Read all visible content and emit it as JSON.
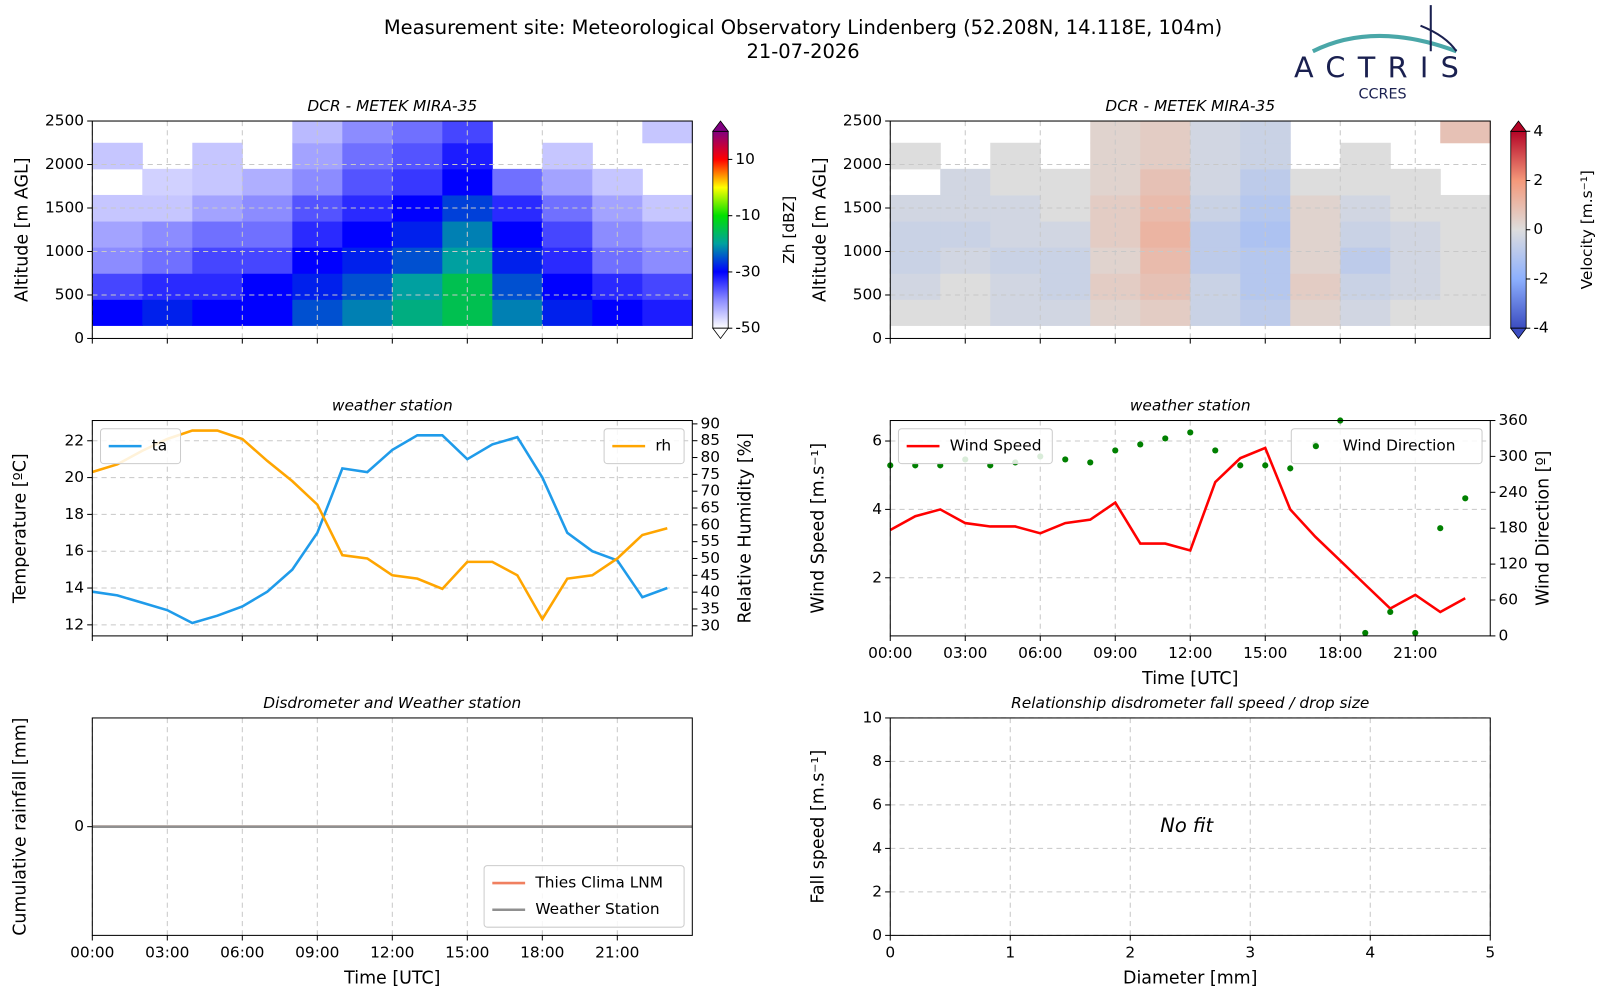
{
  "header": {
    "title": "Measurement site: Meteorological Observatory Lindenberg (52.208N, 14.118E, 104m)",
    "date": "21-07-2026",
    "logo": {
      "name": "ACTRIS",
      "sub": "CCRES"
    }
  },
  "chart_data": [
    {
      "type": "heatmap",
      "title": "DCR - METEK MIRA-35",
      "ylabel": "Altitude [m AGL]",
      "x_bins": [
        0,
        2,
        4,
        6,
        8,
        10,
        12,
        14,
        16,
        18,
        20,
        22,
        24
      ],
      "y_bins": [
        150,
        450,
        750,
        1050,
        1350,
        1650,
        1950,
        2250,
        2500
      ],
      "values": [
        [
          -30,
          -28,
          -30,
          -30,
          -25,
          -22,
          -18,
          -15,
          -22,
          -28,
          -30,
          -32
        ],
        [
          -35,
          -33,
          -33,
          -30,
          -28,
          -25,
          -20,
          -15,
          -25,
          -30,
          -33,
          -35
        ],
        [
          -40,
          -38,
          -35,
          -35,
          -30,
          -28,
          -25,
          -20,
          -28,
          -33,
          -38,
          -40
        ],
        [
          -42,
          -40,
          -38,
          -38,
          -33,
          -30,
          -28,
          -22,
          -30,
          -35,
          -40,
          -42
        ],
        [
          -45,
          -45,
          -42,
          -40,
          -36,
          -33,
          -30,
          -26,
          -33,
          -38,
          -42,
          -45
        ],
        [
          null,
          -46,
          -45,
          -43,
          -40,
          -36,
          -34,
          -30,
          -38,
          -42,
          -45,
          null
        ],
        [
          -45,
          null,
          -45,
          null,
          -42,
          -38,
          -36,
          -32,
          null,
          -45,
          null,
          null
        ],
        [
          null,
          null,
          null,
          null,
          -44,
          -40,
          -38,
          -35,
          null,
          null,
          null,
          -45
        ]
      ],
      "xlim": [
        0,
        24
      ],
      "xticks": [
        0,
        3,
        6,
        9,
        12,
        15,
        18,
        21
      ],
      "show_xtick_labels": false,
      "ylim": [
        0,
        2500
      ],
      "yticks": [
        0,
        500,
        1000,
        1500,
        2000,
        2500
      ],
      "grid": true,
      "colorbar": {
        "label": "Zh [dBZ]",
        "clim": [
          -50,
          20
        ],
        "ticks": [
          -50,
          -30,
          -10,
          10
        ],
        "colors": [
          "#ffffff",
          "#8c8cff",
          "#0000ff",
          "#00a0a0",
          "#00e000",
          "#ffff00",
          "#ff0000",
          "#800080"
        ]
      }
    },
    {
      "type": "heatmap",
      "title": "DCR - METEK MIRA-35",
      "ylabel": "Altitude [m AGL]",
      "x_bins": [
        0,
        2,
        4,
        6,
        8,
        10,
        12,
        14,
        16,
        18,
        20,
        22,
        24
      ],
      "y_bins": [
        150,
        450,
        750,
        1050,
        1350,
        1650,
        1950,
        2250,
        2500
      ],
      "values": [
        [
          0,
          0,
          -0.3,
          -0.3,
          0.3,
          0.5,
          -0.5,
          -0.8,
          0.3,
          -0.3,
          0,
          0
        ],
        [
          -0.3,
          0,
          -0.3,
          -0.5,
          0.5,
          0.8,
          -0.5,
          -1,
          0.5,
          -0.5,
          -0.3,
          0
        ],
        [
          -0.5,
          -0.3,
          -0.5,
          -0.5,
          0.3,
          1,
          -0.8,
          -1,
          0.3,
          -0.8,
          -0.3,
          0
        ],
        [
          -0.5,
          -0.5,
          -0.3,
          -0.3,
          0.5,
          1.2,
          -0.8,
          -1.2,
          0.3,
          -0.5,
          -0.3,
          0
        ],
        [
          -0.3,
          -0.3,
          -0.3,
          0,
          0.5,
          1,
          -0.5,
          -1,
          0.3,
          -0.3,
          0,
          0
        ],
        [
          null,
          -0.3,
          0,
          0,
          0.3,
          0.8,
          -0.3,
          -0.8,
          0,
          0,
          0,
          null
        ],
        [
          0,
          null,
          0,
          null,
          0.3,
          0.5,
          -0.3,
          -0.5,
          null,
          0,
          null,
          null
        ],
        [
          null,
          null,
          null,
          null,
          0.3,
          0.5,
          -0.3,
          -0.5,
          null,
          null,
          null,
          0.8
        ]
      ],
      "xlim": [
        0,
        24
      ],
      "xticks": [
        0,
        3,
        6,
        9,
        12,
        15,
        18,
        21
      ],
      "show_xtick_labels": false,
      "ylim": [
        0,
        2500
      ],
      "yticks": [
        0,
        500,
        1000,
        1500,
        2000,
        2500
      ],
      "grid": true,
      "colorbar": {
        "label": "Velocity [m.s⁻¹]",
        "clim": [
          -4,
          4
        ],
        "ticks": [
          -4,
          -2,
          0,
          2,
          4
        ],
        "colors": [
          "#3b4cc0",
          "#8db0fe",
          "#dddddd",
          "#f4987a",
          "#b40426"
        ]
      }
    },
    {
      "type": "line",
      "title": "weather station",
      "ylabel": "Temperature [ºC]",
      "y2label": "Relative Humidity [%]",
      "x": [
        0,
        1,
        2,
        3,
        4,
        5,
        6,
        7,
        8,
        9,
        10,
        11,
        12,
        13,
        14,
        15,
        16,
        17,
        18,
        19,
        20,
        21,
        22,
        23
      ],
      "series": [
        {
          "name": "ta",
          "color": "#1f9bea",
          "kind": "line",
          "legend": "upper left",
          "values": [
            13.8,
            13.6,
            13.2,
            12.8,
            12.1,
            12.5,
            13.0,
            13.8,
            15.0,
            17.0,
            20.5,
            20.3,
            21.5,
            22.3,
            22.3,
            21.0,
            21.8,
            22.2,
            20.0,
            17.0,
            16.0,
            15.5,
            13.5,
            14.0
          ]
        },
        {
          "name": "rh",
          "color": "#ffa500",
          "kind": "line",
          "legend": "upper right",
          "axis": "y2",
          "values": [
            75.7,
            78,
            82,
            85.5,
            88,
            88,
            85.5,
            79,
            73,
            66,
            51,
            50,
            45,
            44,
            41,
            49,
            49,
            45,
            32,
            44,
            45,
            50,
            57,
            59
          ]
        }
      ],
      "xlim": [
        0,
        24
      ],
      "xticks": [
        0,
        3,
        6,
        9,
        12,
        15,
        18,
        21
      ],
      "show_xtick_labels": false,
      "ylim": [
        11.4,
        23.1
      ],
      "yticks": [
        12,
        14,
        16,
        18,
        20,
        22
      ],
      "y2lim": [
        27,
        91
      ],
      "y2ticks": [
        30,
        35,
        40,
        45,
        50,
        55,
        60,
        65,
        70,
        75,
        80,
        85,
        90
      ],
      "grid": true
    },
    {
      "type": "line",
      "title": "weather station",
      "ylabel": "Wind Speed [m.s⁻¹]",
      "y2label": "Wind Direction [º]",
      "xlabel": "Time [UTC]",
      "x": [
        0,
        1,
        2,
        3,
        4,
        5,
        6,
        7,
        8,
        9,
        10,
        11,
        12,
        13,
        14,
        15,
        16,
        17,
        18,
        19,
        20,
        21,
        22,
        23
      ],
      "series": [
        {
          "name": "Wind Speed",
          "color": "#ff0000",
          "kind": "line",
          "legend": "upper left",
          "values": [
            3.4,
            3.8,
            4.0,
            3.6,
            3.5,
            3.5,
            3.3,
            3.6,
            3.7,
            4.2,
            3.0,
            3.0,
            2.8,
            4.8,
            5.5,
            5.8,
            4.0,
            3.2,
            2.5,
            1.8,
            1.1,
            1.5,
            1.0,
            1.4
          ]
        },
        {
          "name": "Wind Direction",
          "color": "#008000",
          "kind": "scatter",
          "legend": "upper right",
          "axis": "y2",
          "values": [
            285,
            285,
            285,
            295,
            285,
            290,
            300,
            295,
            290,
            310,
            320,
            330,
            340,
            310,
            285,
            285,
            280,
            320,
            360,
            5,
            40,
            5,
            180,
            230
          ]
        }
      ],
      "xlim": [
        0,
        24
      ],
      "xticks": [
        {
          "value": 0,
          "label": "00:00"
        },
        {
          "value": 3,
          "label": "03:00"
        },
        {
          "value": 6,
          "label": "06:00"
        },
        {
          "value": 9,
          "label": "09:00"
        },
        {
          "value": 12,
          "label": "12:00"
        },
        {
          "value": 15,
          "label": "15:00"
        },
        {
          "value": 18,
          "label": "18:00"
        },
        {
          "value": 21,
          "label": "21:00"
        }
      ],
      "ylim": [
        0.3,
        6.6
      ],
      "yticks": [
        2,
        4,
        6
      ],
      "y2lim": [
        0,
        360
      ],
      "y2ticks": [
        0,
        60,
        120,
        180,
        240,
        300,
        360
      ],
      "grid": true
    },
    {
      "type": "line",
      "title": "Disdrometer and Weather station",
      "ylabel": "Cumulative rainfall [mm]",
      "xlabel": "Time [UTC]",
      "x": [
        0,
        24
      ],
      "series": [
        {
          "name": "Thies Clima LNM",
          "color": "#f08060",
          "kind": "line",
          "legend": "lower right",
          "values": [
            0,
            0
          ]
        },
        {
          "name": "Weather Station",
          "color": "#909090",
          "kind": "line",
          "legend": "lower right",
          "values": [
            0,
            0
          ]
        }
      ],
      "xlim": [
        0,
        24
      ],
      "xticks": [
        {
          "value": 0,
          "label": "00:00"
        },
        {
          "value": 3,
          "label": "03:00"
        },
        {
          "value": 6,
          "label": "06:00"
        },
        {
          "value": 9,
          "label": "09:00"
        },
        {
          "value": 12,
          "label": "12:00"
        },
        {
          "value": 15,
          "label": "15:00"
        },
        {
          "value": 18,
          "label": "18:00"
        },
        {
          "value": 21,
          "label": "21:00"
        }
      ],
      "ylim": [
        -1,
        1
      ],
      "yticks": [
        0
      ],
      "grid": true
    },
    {
      "type": "scatter",
      "title": "Relationship disdrometer fall speed / drop size",
      "ylabel": "Fall speed [m.s⁻¹]",
      "xlabel": "Diameter [mm]",
      "annotation": "No fit",
      "xlim": [
        0,
        5
      ],
      "xticks": [
        0,
        1,
        2,
        3,
        4,
        5
      ],
      "ylim": [
        0,
        10
      ],
      "yticks": [
        0,
        2,
        4,
        6,
        8,
        10
      ],
      "grid": true
    }
  ]
}
